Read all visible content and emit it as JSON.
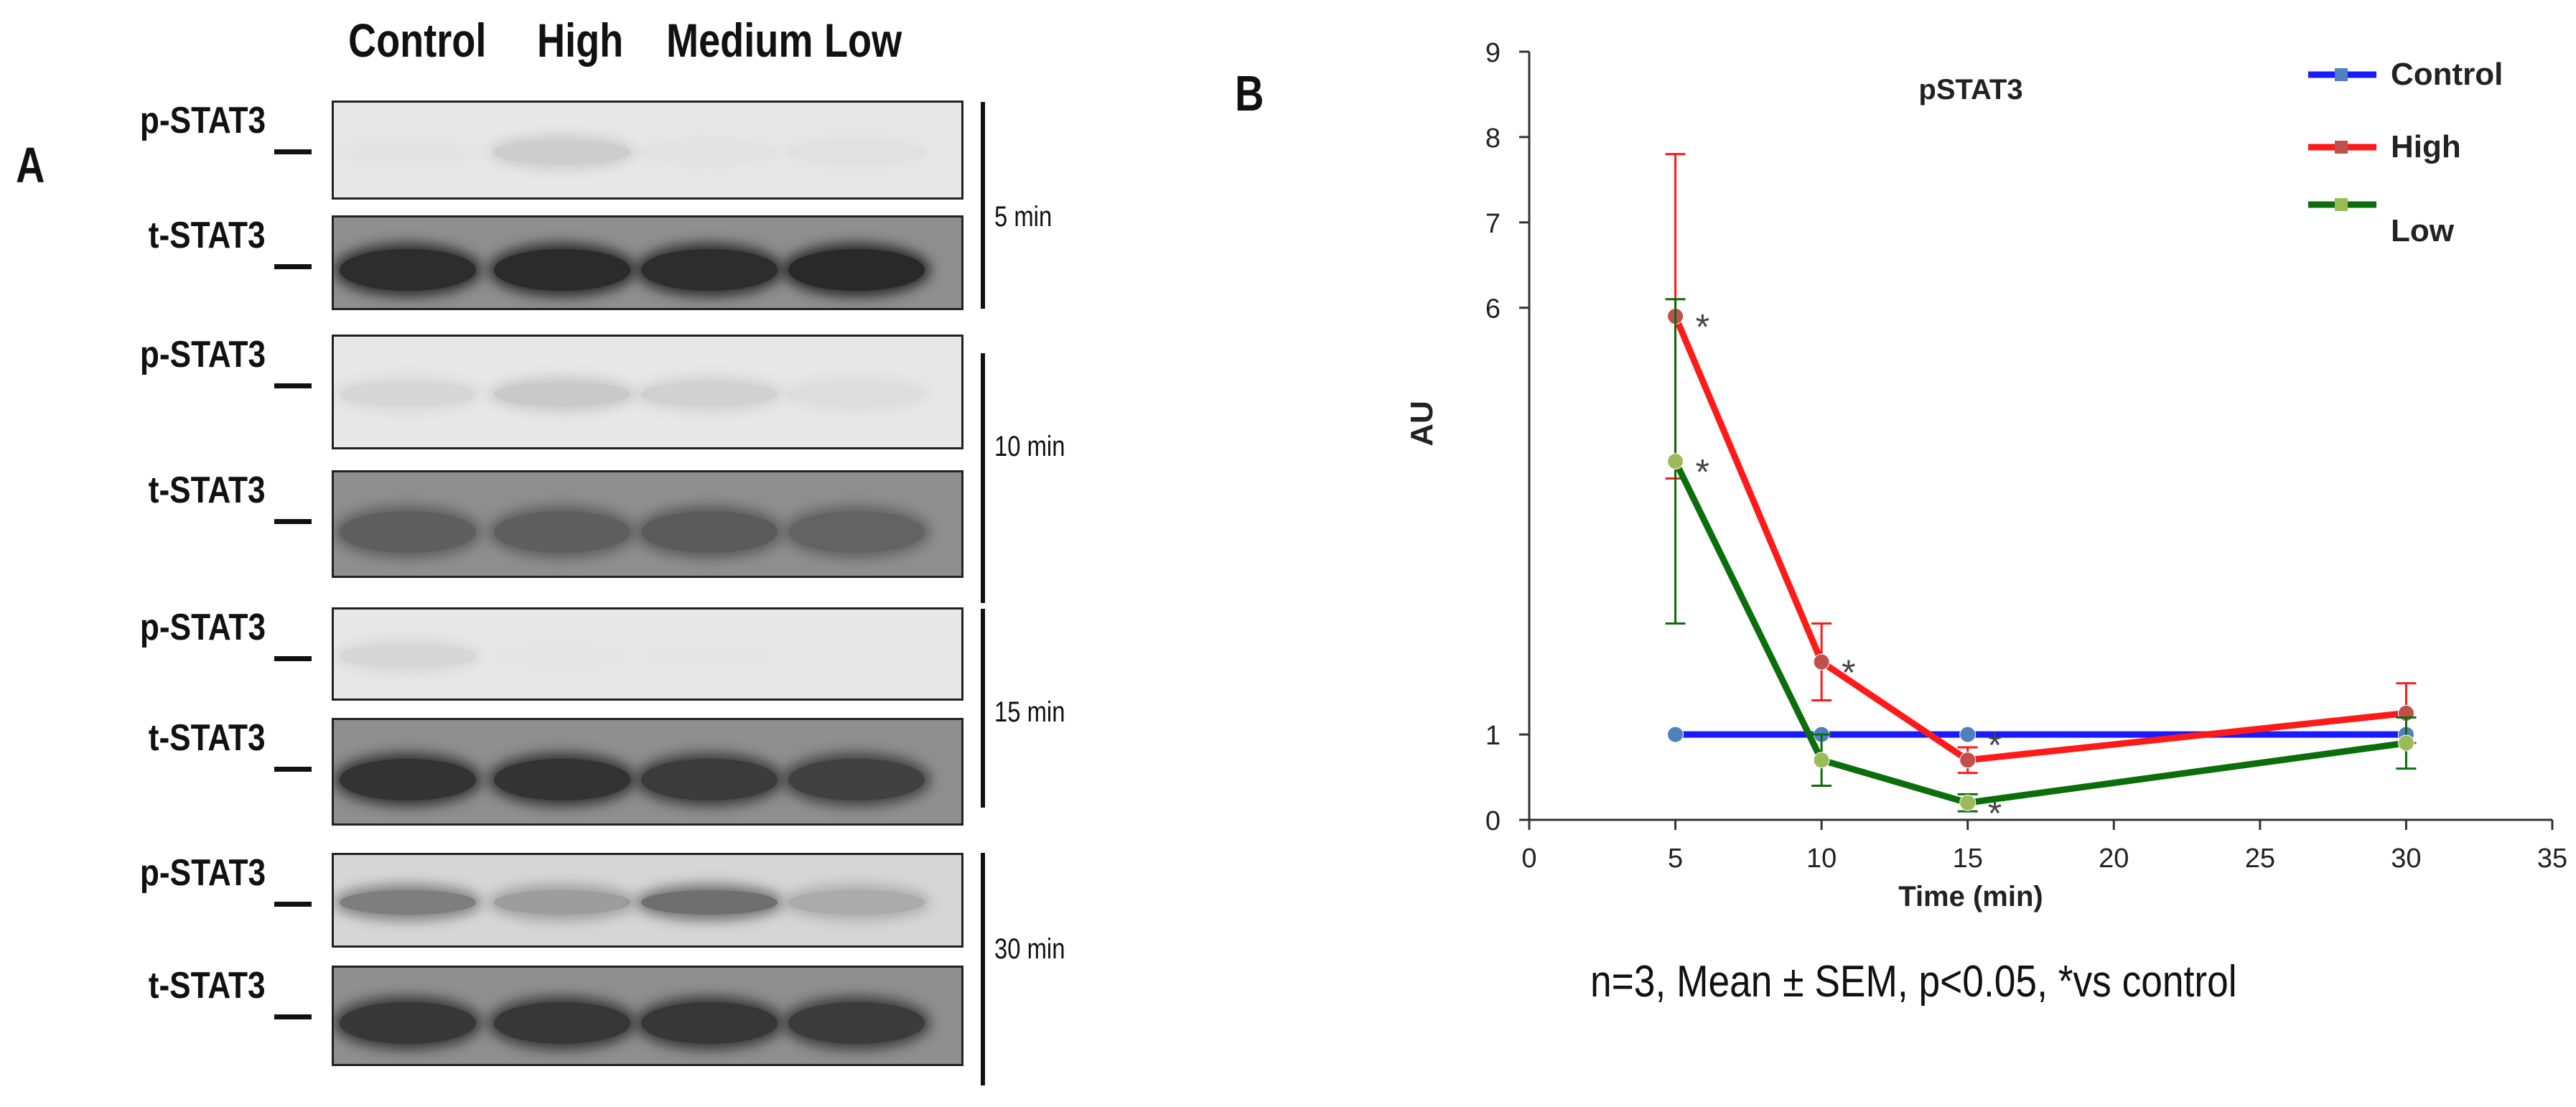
{
  "panel_a": {
    "letter": "A",
    "lanes": [
      "Control",
      "High",
      "Medium",
      "Low"
    ],
    "rows": [
      {
        "label": "p-STAT3",
        "intensity": [
          0.1,
          0.28,
          0.12,
          0.14
        ]
      },
      {
        "label": "t-STAT3",
        "intensity": [
          0.95,
          0.96,
          0.95,
          0.97
        ]
      },
      {
        "label": "p-STAT3",
        "intensity": [
          0.22,
          0.3,
          0.26,
          0.18
        ]
      },
      {
        "label": "t-STAT3",
        "intensity": [
          0.7,
          0.7,
          0.72,
          0.68
        ]
      },
      {
        "label": "p-STAT3",
        "intensity": [
          0.22,
          0.08,
          0.05,
          0.02
        ]
      },
      {
        "label": "t-STAT3",
        "intensity": [
          0.92,
          0.92,
          0.88,
          0.85
        ]
      },
      {
        "label": "p-STAT3",
        "intensity": [
          0.55,
          0.45,
          0.62,
          0.4
        ]
      },
      {
        "label": "t-STAT3",
        "intensity": [
          0.9,
          0.9,
          0.9,
          0.88
        ]
      }
    ],
    "time_groups": [
      "5 min",
      "10 min",
      "15 min",
      "30 min"
    ]
  },
  "panel_b": {
    "letter": "B",
    "footnote": "n=3,  Mean ± SEM, p<0.05, *vs control"
  },
  "chart_data": {
    "type": "line",
    "title": "pSTAT3",
    "xlabel": "Time (min)",
    "ylabel": "AU",
    "xlim": [
      0,
      35
    ],
    "ylim": [
      0,
      9
    ],
    "x_ticks": [
      0,
      5,
      10,
      15,
      20,
      25,
      30,
      35
    ],
    "y_ticks": [
      0,
      1,
      6,
      7,
      8,
      9
    ],
    "legend_position": "top-right",
    "series": [
      {
        "name": "Control",
        "color": "#1a1aff",
        "marker_color": "#4f81bd",
        "x": [
          5,
          10,
          15,
          30
        ],
        "y": [
          1.0,
          1.0,
          1.0,
          1.0
        ],
        "err": [
          0,
          0,
          0,
          0
        ],
        "star": [
          false,
          false,
          true,
          false
        ]
      },
      {
        "name": "High",
        "color": "#ff1a1a",
        "marker_color": "#c0504d",
        "x": [
          5,
          10,
          15,
          30
        ],
        "y": [
          5.9,
          1.85,
          0.7,
          1.25
        ],
        "err": [
          1.9,
          0.45,
          0.15,
          0.35
        ],
        "star": [
          true,
          true,
          false,
          false
        ]
      },
      {
        "name": "Low",
        "color": "#0b6e0b",
        "marker_color": "#9bbb59",
        "x": [
          5,
          10,
          15,
          30
        ],
        "y": [
          4.2,
          0.7,
          0.2,
          0.9
        ],
        "err": [
          1.9,
          0.3,
          0.1,
          0.3
        ],
        "star": [
          true,
          false,
          true,
          false
        ]
      }
    ]
  }
}
